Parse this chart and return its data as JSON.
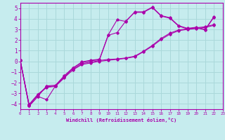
{
  "xlabel": "Windchill (Refroidissement éolien,°C)",
  "background_color": "#c6ecee",
  "grid_color": "#aad8da",
  "line_color": "#aa00aa",
  "spine_color": "#aa00aa",
  "xlim": [
    0,
    23
  ],
  "ylim": [
    -4.5,
    5.5
  ],
  "xticks": [
    0,
    1,
    2,
    3,
    4,
    5,
    6,
    7,
    8,
    9,
    10,
    11,
    12,
    13,
    14,
    15,
    16,
    17,
    18,
    19,
    20,
    21,
    22,
    23
  ],
  "yticks": [
    -4,
    -3,
    -2,
    -1,
    0,
    1,
    2,
    3,
    4,
    5
  ],
  "series": [
    [
      0.1,
      -4.2,
      -3.3,
      -3.6,
      -2.3,
      -1.4,
      -0.65,
      -0.05,
      0.1,
      0.2,
      2.5,
      3.9,
      3.75,
      4.65,
      4.65,
      5.1,
      4.3,
      4.1,
      3.35,
      3.1,
      3.2,
      3.0,
      4.2
    ],
    [
      0.1,
      -4.2,
      -3.3,
      -2.3,
      -2.25,
      -1.35,
      -0.6,
      -0.1,
      0.05,
      0.15,
      2.45,
      2.7,
      3.8,
      4.6,
      4.6,
      5.05,
      4.25,
      4.05,
      3.3,
      3.05,
      3.15,
      2.95,
      4.15
    ],
    [
      0.1,
      -4.1,
      -3.15,
      -2.45,
      -2.35,
      -1.55,
      -0.75,
      -0.2,
      -0.08,
      0.08,
      0.18,
      0.22,
      0.32,
      0.48,
      0.95,
      1.5,
      2.15,
      2.65,
      2.95,
      3.05,
      3.15,
      3.25,
      3.45
    ],
    [
      0.1,
      -4.05,
      -3.1,
      -2.4,
      -2.3,
      -1.5,
      -0.8,
      -0.3,
      -0.15,
      0.0,
      0.1,
      0.18,
      0.28,
      0.43,
      0.9,
      1.42,
      2.05,
      2.55,
      2.88,
      3.0,
      3.08,
      3.18,
      3.38
    ]
  ]
}
